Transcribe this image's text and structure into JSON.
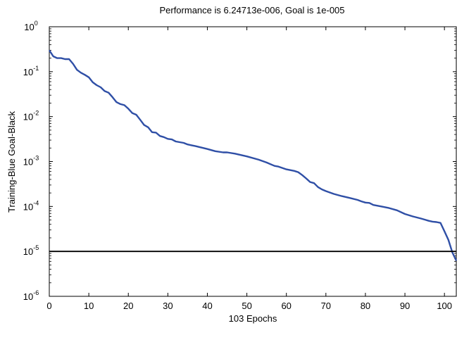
{
  "chart_data": {
    "type": "line",
    "title": "Performance is 6.24713e-006, Goal is 1e-005",
    "xlabel": "103 Epochs",
    "ylabel": "Training-Blue  Goal-Black",
    "xlim": [
      0,
      103
    ],
    "ylim": [
      1e-06,
      1
    ],
    "yscale": "log",
    "grid": false,
    "legend": "none",
    "x_ticks": [
      0,
      10,
      20,
      30,
      40,
      50,
      60,
      70,
      80,
      90,
      100
    ],
    "y_ticks": [
      {
        "base": "10",
        "exp": "-6"
      },
      {
        "base": "10",
        "exp": "-5"
      },
      {
        "base": "10",
        "exp": "-4"
      },
      {
        "base": "10",
        "exp": "-3"
      },
      {
        "base": "10",
        "exp": "-2"
      },
      {
        "base": "10",
        "exp": "-1"
      },
      {
        "base": "10",
        "exp": "0"
      }
    ],
    "series": [
      {
        "color": "#2f4fa6",
        "x": [
          0,
          1,
          2,
          3,
          4,
          5,
          6,
          7,
          8,
          9,
          10,
          11,
          12,
          13,
          14,
          15,
          16,
          17,
          18,
          19,
          20,
          21,
          22,
          23,
          24,
          25,
          26,
          27,
          28,
          29,
          30,
          31,
          32,
          33,
          34,
          35,
          36,
          37,
          38,
          39,
          40,
          42,
          44,
          45,
          47,
          50,
          53,
          55,
          57,
          58,
          60,
          62,
          63,
          64,
          65,
          66,
          67,
          68,
          69,
          70,
          72,
          74,
          76,
          78,
          79,
          80,
          81,
          82,
          84,
          86,
          88,
          90,
          92,
          94,
          95,
          96,
          97,
          98,
          99,
          100,
          101,
          102,
          103
        ],
        "y": [
          0.3,
          0.22,
          0.2,
          0.2,
          0.19,
          0.19,
          0.15,
          0.11,
          0.095,
          0.085,
          0.075,
          0.058,
          0.05,
          0.045,
          0.037,
          0.034,
          0.027,
          0.021,
          0.019,
          0.018,
          0.015,
          0.012,
          0.011,
          0.0085,
          0.0065,
          0.0058,
          0.0045,
          0.0044,
          0.0037,
          0.0035,
          0.0032,
          0.0031,
          0.0028,
          0.0027,
          0.0026,
          0.0024,
          0.0023,
          0.0022,
          0.0021,
          0.002,
          0.0019,
          0.0017,
          0.0016,
          0.0016,
          0.0015,
          0.0013,
          0.0011,
          0.00095,
          0.0008,
          0.00077,
          0.00067,
          0.00062,
          0.00058,
          0.0005,
          0.00042,
          0.00035,
          0.00033,
          0.00027,
          0.00024,
          0.00022,
          0.00019,
          0.00017,
          0.000155,
          0.00014,
          0.00013,
          0.000122,
          0.00012,
          0.000108,
          0.0001,
          9.2e-05,
          8.2e-05,
          6.8e-05,
          6e-05,
          5.4e-05,
          5.1e-05,
          4.8e-05,
          4.6e-05,
          4.5e-05,
          4.3e-05,
          2.8e-05,
          1.8e-05,
          9.5e-06,
          6.2e-06
        ]
      },
      {
        "color": "#000000",
        "x": [
          0,
          103
        ],
        "y": [
          1e-05,
          1e-05
        ]
      }
    ]
  }
}
